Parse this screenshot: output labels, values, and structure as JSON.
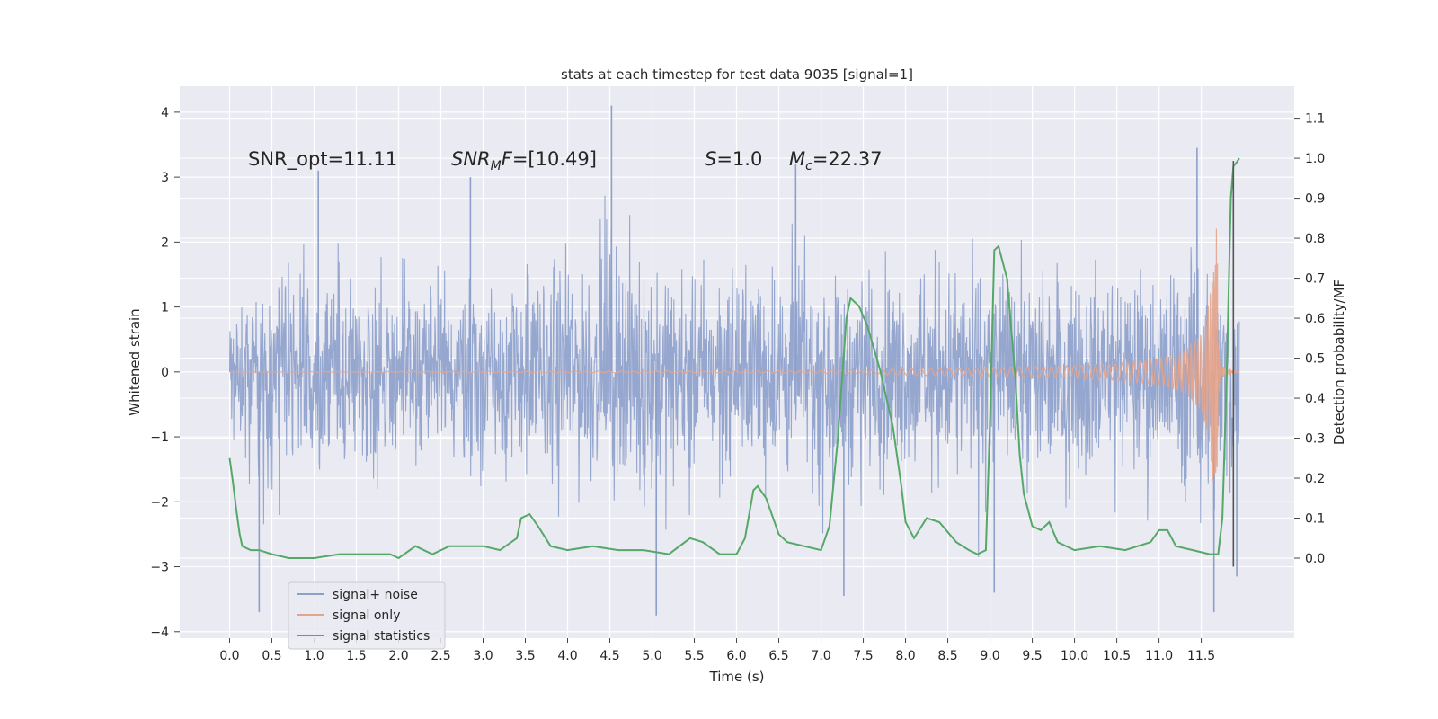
{
  "chart_data": {
    "type": "line",
    "title": "stats at each timestep for test data 9035 [signal=1]",
    "xlabel": "Time (s)",
    "ylabel": "Whitened strain",
    "y2label": "Detection probability/MF",
    "xlim": [
      -0.59,
      12.6
    ],
    "ylim": [
      -4.1,
      4.4
    ],
    "y2lim": [
      -0.2,
      1.18
    ],
    "x_ticks": [
      0.0,
      0.5,
      1.0,
      1.5,
      2.0,
      2.5,
      3.0,
      3.5,
      4.0,
      4.5,
      5.0,
      5.5,
      6.0,
      6.5,
      7.0,
      7.5,
      8.0,
      8.5,
      9.0,
      9.5,
      10.0,
      10.5,
      11.0,
      11.5
    ],
    "x_tick_labels": [
      "0.0",
      "0.5",
      "1.0",
      "1.5",
      "2.0",
      "2.5",
      "3.0",
      "3.5",
      "4.0",
      "4.5",
      "5.0",
      "5.5",
      "6.0",
      "6.5",
      "7.0",
      "7.5",
      "8.0",
      "8.5",
      "9.0",
      "9.5",
      "10.0",
      "10.5",
      "11.0",
      "11.5"
    ],
    "y_ticks": [
      -4,
      -3,
      -2,
      -1,
      0,
      1,
      2,
      3,
      4
    ],
    "y_tick_labels": [
      "−4",
      "−3",
      "−2",
      "−1",
      "0",
      "1",
      "2",
      "3",
      "4"
    ],
    "y2_ticks": [
      0.0,
      0.1,
      0.2,
      0.3,
      0.4,
      0.5,
      0.6,
      0.7,
      0.8,
      0.9,
      1.0,
      1.1
    ],
    "y2_tick_labels": [
      "0.0",
      "0.1",
      "0.2",
      "0.3",
      "0.4",
      "0.5",
      "0.6",
      "0.7",
      "0.8",
      "0.9",
      "1.0",
      "1.1"
    ],
    "grid": true,
    "legend_position": "lower-left",
    "annotations": [
      {
        "key": "snr_opt",
        "text": "SNR_opt=11.11",
        "x": 0.2,
        "y": 3.3
      },
      {
        "key": "snr_mf",
        "text": "[10.49]",
        "prefix_main": "SNR",
        "prefix_sub": "M",
        "prefix_tail": "F=",
        "x": 2.6,
        "y": 3.3
      },
      {
        "key": "s_val",
        "text": "=1.0",
        "prefix_main": "S",
        "x": 5.6,
        "y": 3.3
      },
      {
        "key": "mc_val",
        "text": "=22.37",
        "prefix_main": "M",
        "prefix_sub": "c",
        "x": 6.6,
        "y": 3.3
      }
    ],
    "series": [
      {
        "name": "signal+ noise",
        "axis": "left",
        "color": "#8da0cb",
        "description": "whitened strain sampled densely over 0-12 s; envelope values",
        "envelope_x": [
          0.0,
          0.5,
          1.0,
          1.5,
          2.0,
          2.5,
          3.0,
          3.5,
          4.0,
          4.5,
          5.0,
          5.5,
          6.0,
          6.5,
          7.0,
          7.5,
          8.0,
          8.5,
          9.0,
          9.5,
          10.0,
          10.5,
          11.0,
          11.5,
          11.95
        ],
        "envelope_upper": [
          2.1,
          2.4,
          3.1,
          2.6,
          2.9,
          2.7,
          2.6,
          2.9,
          2.8,
          4.1,
          2.7,
          2.6,
          2.8,
          3.2,
          2.6,
          2.8,
          2.7,
          2.9,
          2.8,
          2.7,
          2.8,
          2.6,
          2.7,
          3.4,
          1.8
        ],
        "envelope_lower": [
          -1.7,
          -3.7,
          -3.2,
          -3.1,
          -3.0,
          -2.9,
          -2.9,
          -3.0,
          -3.3,
          -2.9,
          -3.7,
          -2.9,
          -2.9,
          -2.8,
          -3.4,
          -2.9,
          -2.9,
          -3.0,
          -3.4,
          -2.9,
          -2.8,
          -2.9,
          -3.0,
          -3.7,
          -3.1
        ],
        "amplitude_spikes": [
          {
            "x": 0.35,
            "y": -3.7
          },
          {
            "x": 1.05,
            "y": 3.1
          },
          {
            "x": 2.85,
            "y": 3.0
          },
          {
            "x": 4.52,
            "y": 4.1
          },
          {
            "x": 5.05,
            "y": -3.75
          },
          {
            "x": 6.7,
            "y": 3.2
          },
          {
            "x": 7.27,
            "y": -3.45
          },
          {
            "x": 9.05,
            "y": -3.4
          },
          {
            "x": 11.45,
            "y": 3.45
          },
          {
            "x": 11.65,
            "y": -3.7
          },
          {
            "x": 11.92,
            "y": -3.15
          }
        ]
      },
      {
        "name": "signal only",
        "axis": "left",
        "color": "#e5a48a",
        "description": "chirp waveform growing toward merger near t=11.8 s",
        "x": [
          0.0,
          7.0,
          8.0,
          9.0,
          10.0,
          10.5,
          11.0,
          11.3,
          11.5,
          11.6,
          11.68,
          11.72,
          11.95
        ],
        "amplitude": [
          0.0,
          0.02,
          0.05,
          0.07,
          0.1,
          0.13,
          0.2,
          0.32,
          0.6,
          1.1,
          2.3,
          0.1,
          0.0
        ]
      },
      {
        "name": "signal statistics",
        "axis": "right",
        "color": "#55a868",
        "x": [
          0.0,
          0.04,
          0.08,
          0.12,
          0.15,
          0.25,
          0.35,
          0.5,
          0.7,
          1.0,
          1.3,
          1.6,
          1.9,
          2.0,
          2.2,
          2.4,
          2.6,
          2.8,
          3.0,
          3.2,
          3.4,
          3.45,
          3.55,
          3.65,
          3.8,
          4.0,
          4.3,
          4.6,
          4.9,
          5.2,
          5.45,
          5.6,
          5.8,
          6.0,
          6.1,
          6.2,
          6.25,
          6.35,
          6.5,
          6.6,
          6.8,
          7.0,
          7.1,
          7.2,
          7.3,
          7.35,
          7.45,
          7.55,
          7.7,
          7.85,
          7.95,
          8.0,
          8.1,
          8.25,
          8.4,
          8.6,
          8.75,
          8.85,
          8.95,
          9.0,
          9.05,
          9.1,
          9.2,
          9.3,
          9.35,
          9.4,
          9.5,
          9.6,
          9.7,
          9.8,
          10.0,
          10.3,
          10.6,
          10.9,
          11.0,
          11.1,
          11.2,
          11.4,
          11.6,
          11.7,
          11.75,
          11.8,
          11.85,
          11.88,
          11.92,
          11.95
        ],
        "values": [
          0.25,
          0.19,
          0.12,
          0.06,
          0.03,
          0.02,
          0.02,
          0.01,
          0.0,
          0.0,
          0.01,
          0.01,
          0.01,
          0.0,
          0.03,
          0.01,
          0.03,
          0.03,
          0.03,
          0.02,
          0.05,
          0.1,
          0.11,
          0.08,
          0.03,
          0.02,
          0.03,
          0.02,
          0.02,
          0.01,
          0.05,
          0.04,
          0.01,
          0.01,
          0.05,
          0.17,
          0.18,
          0.15,
          0.06,
          0.04,
          0.03,
          0.02,
          0.08,
          0.3,
          0.6,
          0.65,
          0.63,
          0.58,
          0.47,
          0.33,
          0.18,
          0.09,
          0.05,
          0.1,
          0.09,
          0.04,
          0.02,
          0.01,
          0.02,
          0.35,
          0.77,
          0.78,
          0.7,
          0.45,
          0.26,
          0.16,
          0.08,
          0.07,
          0.09,
          0.04,
          0.02,
          0.03,
          0.02,
          0.04,
          0.07,
          0.07,
          0.03,
          0.02,
          0.01,
          0.01,
          0.1,
          0.45,
          0.9,
          0.98,
          0.99,
          1.0
        ]
      }
    ],
    "marker_line": {
      "x": 11.88,
      "y_from": -3.0,
      "y_to": 3.25,
      "color": "#555555"
    }
  }
}
